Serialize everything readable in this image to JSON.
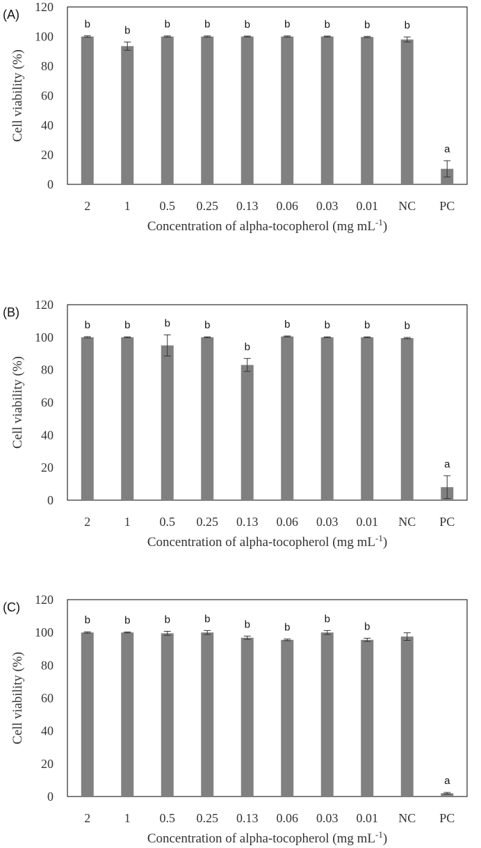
{
  "chart_data": [
    {
      "type": "bar",
      "panel_label": "(A)",
      "categories": [
        "2",
        "1",
        "0.5",
        "0.25",
        "0.13",
        "0.06",
        "0.03",
        "0.01",
        "NC",
        "PC"
      ],
      "values": [
        100,
        93.5,
        100,
        100,
        100,
        100,
        100,
        99.7,
        98,
        10.5
      ],
      "errors": [
        0.5,
        2.8,
        0.4,
        0.4,
        0.3,
        0.4,
        0.3,
        0.4,
        1.7,
        5.5
      ],
      "significance": [
        "b",
        "b",
        "b",
        "b",
        "b",
        "b",
        "b",
        "b",
        "b",
        "a"
      ],
      "xlabel": "Concentration of alpha-tocopherol (mg mL",
      "xlabel_superscript": "-1",
      "xlabel_suffix": ")",
      "ylabel": "Cell viability (%)",
      "ylim": [
        0,
        120
      ],
      "yticks": [
        "0",
        "20",
        "40",
        "60",
        "80",
        "100",
        "120"
      ],
      "bar_color": "#808080",
      "grid": false,
      "legend": "none"
    },
    {
      "type": "bar",
      "panel_label": "(B)",
      "categories": [
        "2",
        "1",
        "0.5",
        "0.25",
        "0.13",
        "0.06",
        "0.03",
        "0.01",
        "NC",
        "PC"
      ],
      "values": [
        100,
        100,
        95,
        100,
        83,
        100.5,
        100,
        100,
        99.5,
        8
      ],
      "errors": [
        0.4,
        0.3,
        6.5,
        0.3,
        4,
        0.3,
        0.3,
        0.3,
        0.4,
        7
      ],
      "significance": [
        "b",
        "b",
        "b",
        "b",
        "b",
        "b",
        "b",
        "b",
        "b",
        "a"
      ],
      "xlabel": "Concentration of alpha-tocopherol (mg mL",
      "xlabel_superscript": "-1",
      "xlabel_suffix": ")",
      "ylabel": "Cell viability (%)",
      "ylim": [
        0,
        120
      ],
      "yticks": [
        "0",
        "20",
        "40",
        "60",
        "80",
        "100",
        "120"
      ],
      "bar_color": "#808080",
      "grid": false,
      "legend": "none"
    },
    {
      "type": "bar",
      "panel_label": "(C)",
      "categories": [
        "2",
        "1",
        "0.5",
        "0.25",
        "0.13",
        "0.06",
        "0.03",
        "0.01",
        "NC",
        "PC"
      ],
      "values": [
        100,
        100,
        99.5,
        100,
        96.8,
        95.5,
        100,
        95.5,
        97.5,
        2
      ],
      "errors": [
        0.4,
        0.3,
        1.2,
        1.2,
        1,
        0.5,
        1.2,
        1,
        2.3,
        0.5
      ],
      "significance": [
        "b",
        "b",
        "b",
        "b",
        "b",
        "b",
        "b",
        "b",
        "",
        "a"
      ],
      "xlabel": "Concentration of alpha-tocopherol (mg mL",
      "xlabel_superscript": "-1",
      "xlabel_suffix": ")",
      "ylabel": "Cell viability (%)",
      "ylim": [
        0,
        120
      ],
      "yticks": [
        "0",
        "20",
        "40",
        "60",
        "80",
        "100",
        "120"
      ],
      "bar_color": "#808080",
      "grid": false,
      "legend": "none"
    }
  ]
}
